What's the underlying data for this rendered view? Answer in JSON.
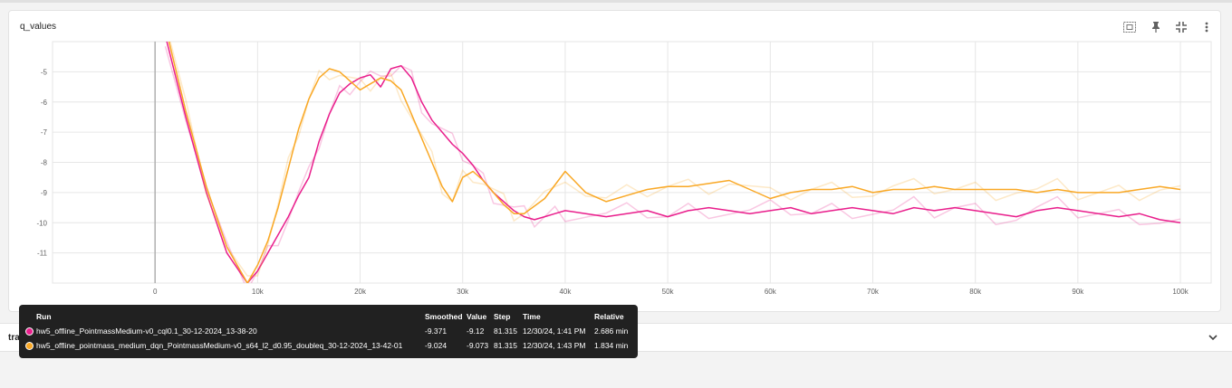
{
  "card": {
    "title": "q_values"
  },
  "toolbar": {
    "icons": [
      "fit-to-data-icon",
      "pin-icon",
      "collapse-icon",
      "more-vert-icon"
    ]
  },
  "section2": {
    "title": "tra"
  },
  "tooltip": {
    "headers": {
      "run": "Run",
      "smoothed": "Smoothed",
      "value": "Value",
      "step": "Step",
      "time": "Time",
      "relative": "Relative"
    },
    "rows": [
      {
        "color": "#e91e8c",
        "run": "hw5_offline_PointmassMedium-v0_cql0.1_30-12-2024_13-38-20",
        "smoothed": "-9.371",
        "value": "-9.12",
        "step": "81.315",
        "time": "12/30/24, 1:41 PM",
        "relative": "2.686 min"
      },
      {
        "color": "#f9a825",
        "run": "hw5_offline_pointmass_medium_dqn_PointmassMedium-v0_s64_l2_d0.95_doubleq_30-12-2024_13-42-01",
        "smoothed": "-9.024",
        "value": "-9.073",
        "step": "81.315",
        "time": "12/30/24, 1:43 PM",
        "relative": "1.834 min"
      }
    ]
  },
  "chart_data": {
    "type": "line",
    "title": "q_values",
    "xlabel": "",
    "ylabel": "",
    "xlim": [
      -10000,
      103000
    ],
    "ylim": [
      -12,
      -4
    ],
    "x_ticks": [
      0,
      10000,
      20000,
      30000,
      40000,
      50000,
      60000,
      70000,
      80000,
      90000,
      100000
    ],
    "x_tick_labels": [
      "0",
      "10k",
      "20k",
      "30k",
      "40k",
      "50k",
      "60k",
      "70k",
      "80k",
      "90k",
      "100k"
    ],
    "y_ticks": [
      -11,
      -10,
      -9,
      -8,
      -7,
      -6,
      -5
    ],
    "y_tick_labels": [
      "-11",
      "-10",
      "-9",
      "-8",
      "-7",
      "-6",
      "-5"
    ],
    "grid": true,
    "series": [
      {
        "name": "hw5_offline_PointmassMedium-v0_cql0.1_30-12-2024_13-38-20",
        "color": "#e91e8c",
        "x": [
          1000,
          3000,
          5000,
          7000,
          9000,
          10000,
          11000,
          12000,
          13000,
          14000,
          15000,
          16000,
          17000,
          18000,
          19000,
          20000,
          21000,
          22000,
          23000,
          24000,
          25000,
          26000,
          27000,
          28000,
          29000,
          30000,
          31000,
          32000,
          33000,
          34000,
          35000,
          36000,
          37000,
          38000,
          39000,
          40000,
          42000,
          44000,
          46000,
          48000,
          50000,
          52000,
          54000,
          56000,
          58000,
          60000,
          62000,
          64000,
          66000,
          68000,
          70000,
          72000,
          74000,
          76000,
          78000,
          80000,
          82000,
          84000,
          86000,
          88000,
          90000,
          92000,
          94000,
          96000,
          98000,
          100000
        ],
        "y": [
          -3.8,
          -6.5,
          -9.0,
          -11.0,
          -12.0,
          -11.6,
          -11.0,
          -10.4,
          -9.8,
          -9.1,
          -8.5,
          -7.3,
          -6.4,
          -5.7,
          -5.4,
          -5.2,
          -5.1,
          -5.5,
          -4.9,
          -4.8,
          -5.2,
          -6.0,
          -6.6,
          -7.0,
          -7.4,
          -7.7,
          -8.1,
          -8.6,
          -9.0,
          -9.3,
          -9.6,
          -9.8,
          -9.9,
          -9.8,
          -9.7,
          -9.6,
          -9.7,
          -9.8,
          -9.7,
          -9.6,
          -9.8,
          -9.6,
          -9.5,
          -9.6,
          -9.7,
          -9.6,
          -9.5,
          -9.7,
          -9.6,
          -9.5,
          -9.6,
          -9.7,
          -9.5,
          -9.6,
          -9.5,
          -9.6,
          -9.7,
          -9.8,
          -9.6,
          -9.5,
          -9.6,
          -9.7,
          -9.8,
          -9.7,
          -9.9,
          -10.0
        ]
      },
      {
        "name": "hw5_offline_pointmass_medium_dqn_PointmassMedium-v0_s64_l2_d0.95_doubleq_30-12-2024_13-42-01",
        "color": "#f9a825",
        "x": [
          1000,
          3000,
          5000,
          7000,
          9000,
          10000,
          11000,
          12000,
          13000,
          14000,
          15000,
          16000,
          17000,
          18000,
          19000,
          20000,
          21000,
          22000,
          23000,
          24000,
          25000,
          26000,
          27000,
          28000,
          29000,
          30000,
          31000,
          32000,
          33000,
          34000,
          35000,
          36000,
          38000,
          40000,
          42000,
          44000,
          46000,
          48000,
          50000,
          52000,
          54000,
          56000,
          58000,
          60000,
          62000,
          64000,
          66000,
          68000,
          70000,
          72000,
          74000,
          76000,
          78000,
          80000,
          82000,
          84000,
          86000,
          88000,
          90000,
          92000,
          94000,
          96000,
          98000,
          100000
        ],
        "y": [
          -3.5,
          -6.3,
          -8.8,
          -10.8,
          -12.0,
          -11.4,
          -10.6,
          -9.5,
          -8.2,
          -6.9,
          -5.9,
          -5.2,
          -4.9,
          -5.0,
          -5.3,
          -5.6,
          -5.4,
          -5.2,
          -5.3,
          -5.6,
          -6.4,
          -7.2,
          -8.0,
          -8.8,
          -9.3,
          -8.5,
          -8.3,
          -8.6,
          -9.0,
          -9.4,
          -9.7,
          -9.7,
          -9.2,
          -8.3,
          -9.0,
          -9.3,
          -9.1,
          -8.9,
          -8.8,
          -8.8,
          -8.7,
          -8.6,
          -8.9,
          -9.2,
          -9.0,
          -8.9,
          -8.9,
          -8.8,
          -9.0,
          -8.9,
          -8.9,
          -8.8,
          -8.9,
          -8.9,
          -8.9,
          -8.9,
          -9.0,
          -8.9,
          -9.0,
          -9.0,
          -9.0,
          -8.9,
          -8.8,
          -8.9
        ]
      }
    ]
  }
}
